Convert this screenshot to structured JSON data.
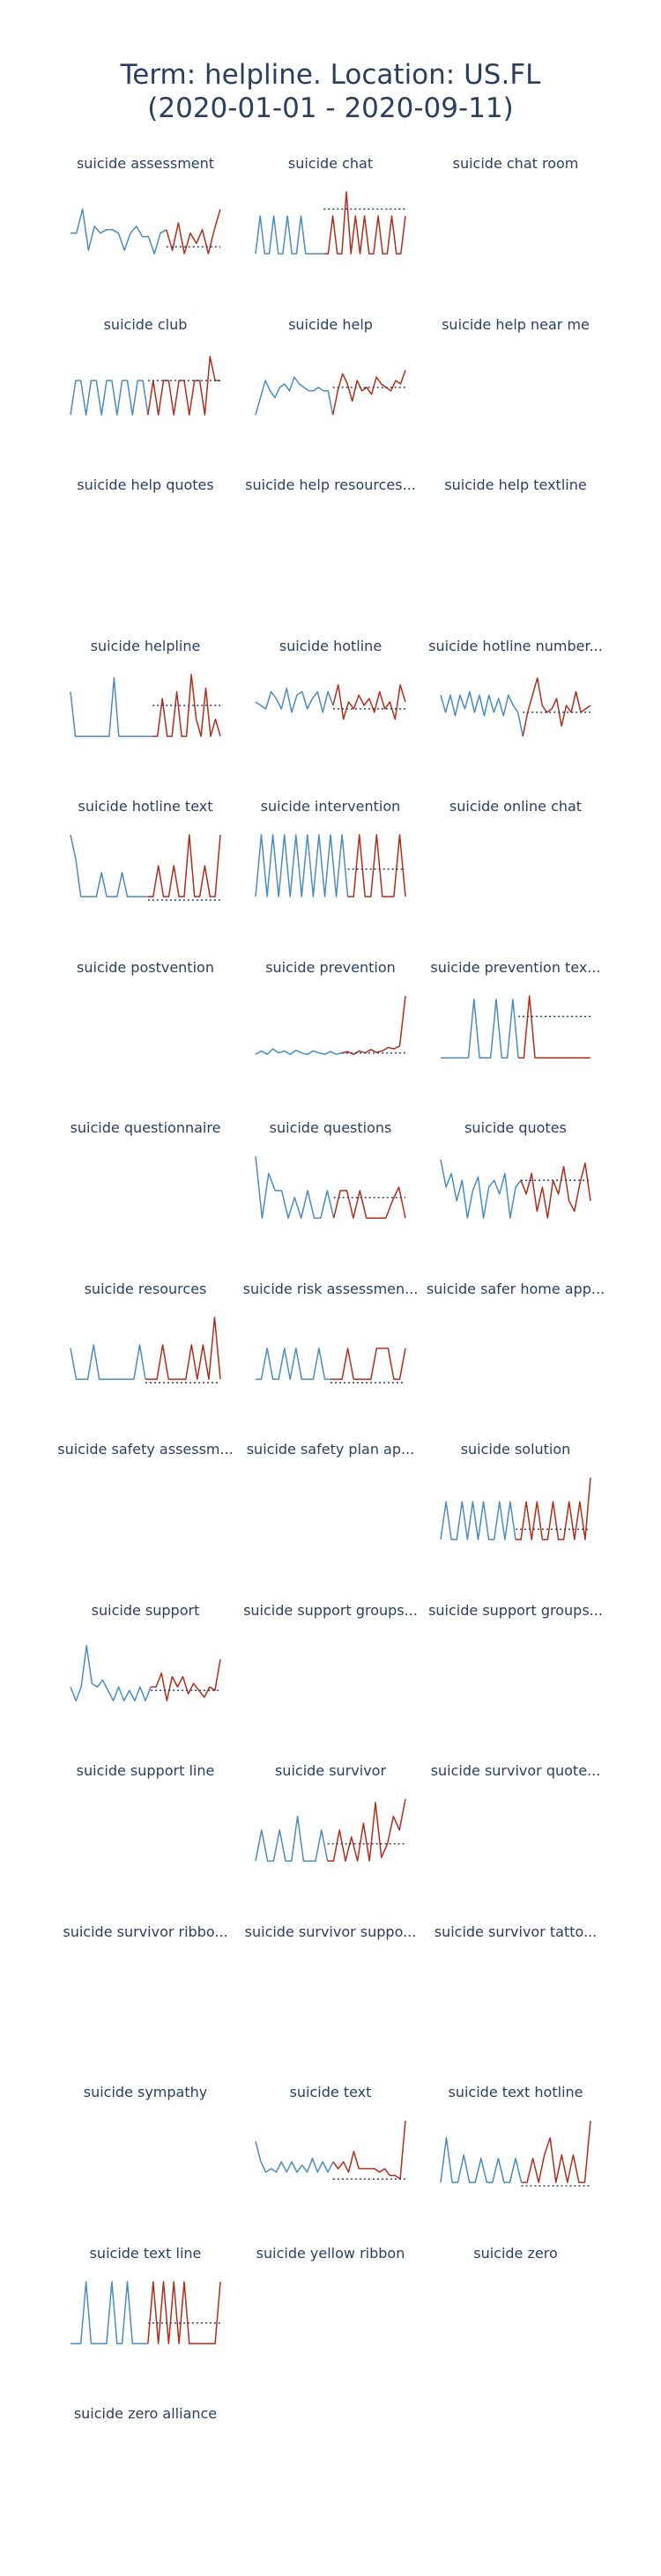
{
  "title": "Term: helpline. Location: US.FL\n(2020-01-01 - 2020-09-11)",
  "colors": {
    "before": "#4a8cbf",
    "after": "#b22c1c",
    "baseline": "#2a3f5f",
    "title": "#2a3f5f"
  },
  "chart_data": [
    {
      "type": "line",
      "title": "suicide assessment",
      "before": [
        0.65,
        0.65,
        0.3,
        0.9,
        0.55,
        0.65,
        0.6,
        0.6,
        0.65,
        0.9,
        0.65,
        0.55,
        0.7,
        0.7,
        0.95,
        0.65,
        0.6
      ],
      "after": [
        0.9,
        0.5,
        0.95,
        0.65,
        0.8,
        0.6,
        0.95,
        0.6,
        0.3
      ],
      "level": 0.85
    },
    {
      "type": "line",
      "title": "suicide chat",
      "before": [
        0.95,
        0.4,
        0.95,
        0.95,
        0.4,
        0.95,
        0.95,
        0.4,
        0.95,
        0.95,
        0.4,
        0.95,
        0.95,
        0.95,
        0.95,
        0.95
      ],
      "after": [
        0.95,
        0.4,
        0.95,
        0.95,
        0.05,
        0.95,
        0.4,
        0.95,
        0.4,
        0.95,
        0.95,
        0.4,
        0.95,
        0.95,
        0.4,
        0.95,
        0.95,
        0.4
      ],
      "level": 0.3
    },
    {
      "type": "line",
      "title": "suicide chat room"
    },
    {
      "type": "line",
      "title": "suicide club",
      "before": [
        0.95,
        0.45,
        0.45,
        0.95,
        0.45,
        0.45,
        0.95,
        0.45,
        0.45,
        0.95,
        0.45,
        0.45,
        0.95,
        0.45,
        0.45,
        0.95
      ],
      "after": [
        0.45,
        0.95,
        0.45,
        0.45,
        0.95,
        0.45,
        0.45,
        0.95,
        0.45,
        0.45,
        0.95,
        0.1,
        0.45,
        0.45
      ],
      "level": 0.45
    },
    {
      "type": "line",
      "title": "suicide help",
      "before": [
        0.95,
        0.7,
        0.45,
        0.6,
        0.7,
        0.55,
        0.5,
        0.6,
        0.4,
        0.5,
        0.55,
        0.6,
        0.6,
        0.55,
        0.6,
        0.6,
        0.95
      ],
      "after": [
        0.6,
        0.35,
        0.5,
        0.75,
        0.45,
        0.6,
        0.55,
        0.65,
        0.4,
        0.5,
        0.55,
        0.6,
        0.45,
        0.5,
        0.3
      ],
      "level": 0.55
    },
    {
      "type": "line",
      "title": "suicide help near me"
    },
    {
      "type": "line",
      "title": "suicide help quotes"
    },
    {
      "type": "line",
      "title": "suicide help resources..."
    },
    {
      "type": "line",
      "title": "suicide help textline"
    },
    {
      "type": "line",
      "title": "suicide helpline",
      "before": [
        0.3,
        0.95,
        0.95,
        0.95,
        0.95,
        0.95,
        0.95,
        0.95,
        0.95,
        0.1,
        0.95,
        0.95,
        0.95,
        0.95,
        0.95,
        0.95,
        0.95,
        0.95
      ],
      "after": [
        0.95,
        0.4,
        0.95,
        0.95,
        0.3,
        0.95,
        0.95,
        0.05,
        0.7,
        0.95,
        0.25,
        0.95,
        0.7,
        0.95
      ],
      "level": 0.5
    },
    {
      "type": "line",
      "title": "suicide hotline",
      "before": [
        0.45,
        0.5,
        0.55,
        0.3,
        0.4,
        0.55,
        0.25,
        0.6,
        0.35,
        0.3,
        0.55,
        0.4,
        0.3,
        0.6,
        0.3,
        0.5
      ],
      "after": [
        0.2,
        0.7,
        0.45,
        0.55,
        0.35,
        0.5,
        0.4,
        0.6,
        0.3,
        0.55,
        0.45,
        0.7,
        0.2,
        0.45
      ],
      "level": 0.55
    },
    {
      "type": "line",
      "title": "suicide hotline number...",
      "before": [
        0.35,
        0.6,
        0.35,
        0.65,
        0.35,
        0.55,
        0.3,
        0.6,
        0.35,
        0.65,
        0.35,
        0.6,
        0.4,
        0.65,
        0.35,
        0.5,
        0.6,
        0.95
      ],
      "after": [
        0.6,
        0.35,
        0.1,
        0.5,
        0.6,
        0.55,
        0.4,
        0.8,
        0.5,
        0.6,
        0.3,
        0.6,
        0.55,
        0.5
      ],
      "level": 0.6
    },
    {
      "type": "line",
      "title": "suicide hotline text",
      "before": [
        0.05,
        0.4,
        0.95,
        0.95,
        0.95,
        0.95,
        0.6,
        0.95,
        0.95,
        0.95,
        0.6,
        0.95,
        0.95,
        0.95,
        0.95,
        0.95
      ],
      "after": [
        0.95,
        0.5,
        0.95,
        0.95,
        0.5,
        0.95,
        0.95,
        0.05,
        0.95,
        0.95,
        0.5,
        0.95,
        0.95,
        0.05
      ],
      "level": 1.0
    },
    {
      "type": "line",
      "title": "suicide intervention",
      "before": [
        0.95,
        0.05,
        0.95,
        0.05,
        0.95,
        0.05,
        0.95,
        0.05,
        0.95,
        0.05,
        0.95,
        0.05,
        0.95,
        0.05,
        0.95,
        0.05,
        0.95
      ],
      "after": [
        0.95,
        0.05,
        0.95,
        0.95,
        0.05,
        0.95,
        0.95,
        0.95,
        0.05,
        0.95
      ],
      "level": 0.55
    },
    {
      "type": "line",
      "title": "suicide online chat"
    },
    {
      "type": "line",
      "title": "suicide postvention"
    },
    {
      "type": "line",
      "title": "suicide prevention",
      "before": [
        0.9,
        0.85,
        0.9,
        0.82,
        0.88,
        0.85,
        0.9,
        0.84,
        0.88,
        0.9,
        0.85,
        0.88,
        0.9,
        0.86,
        0.9,
        0.88
      ],
      "after": [
        0.86,
        0.9,
        0.85,
        0.88,
        0.83,
        0.87,
        0.85,
        0.8,
        0.82,
        0.78,
        0.05
      ],
      "level": 0.88
    },
    {
      "type": "line",
      "title": "suicide prevention tex...",
      "before": [
        0.95,
        0.95,
        0.95,
        0.95,
        0.95,
        0.95,
        0.1,
        0.95,
        0.95,
        0.95,
        0.1,
        0.95,
        0.95,
        0.1,
        0.95
      ],
      "after": [
        0.95,
        0.05,
        0.95,
        0.95,
        0.95,
        0.95,
        0.95,
        0.95,
        0.95,
        0.95,
        0.95,
        0.95,
        0.95
      ],
      "level": 0.35
    },
    {
      "type": "line",
      "title": "suicide questionnaire"
    },
    {
      "type": "line",
      "title": "suicide questions",
      "before": [
        0.05,
        0.95,
        0.3,
        0.55,
        0.55,
        0.95,
        0.65,
        0.95,
        0.55,
        0.95,
        0.95,
        0.55,
        0.95
      ],
      "after": [
        0.55,
        0.55,
        0.95,
        0.55,
        0.95,
        0.95,
        0.95,
        0.95,
        0.7,
        0.5,
        0.95
      ],
      "level": 0.65
    },
    {
      "type": "line",
      "title": "suicide quotes",
      "before": [
        0.1,
        0.5,
        0.3,
        0.7,
        0.4,
        0.95,
        0.55,
        0.35,
        0.95,
        0.5,
        0.4,
        0.6,
        0.3,
        0.95,
        0.5,
        0.4
      ],
      "after": [
        0.6,
        0.3,
        0.85,
        0.5,
        0.95,
        0.4,
        0.6,
        0.2,
        0.7,
        0.85,
        0.45,
        0.15,
        0.7
      ],
      "level": 0.4
    },
    {
      "type": "line",
      "title": "suicide resources",
      "before": [
        0.5,
        0.95,
        0.95,
        0.95,
        0.45,
        0.95,
        0.95,
        0.95,
        0.95,
        0.95,
        0.95,
        0.95,
        0.45,
        0.95
      ],
      "after": [
        0.95,
        0.95,
        0.45,
        0.95,
        0.95,
        0.95,
        0.95,
        0.45,
        0.95,
        0.45,
        0.95,
        0.05,
        0.95
      ],
      "level": 1.0
    },
    {
      "type": "line",
      "title": "suicide risk assessmen...",
      "before": [
        0.95,
        0.95,
        0.5,
        0.95,
        0.95,
        0.5,
        0.95,
        0.5,
        0.95,
        0.95,
        0.95,
        0.5,
        0.95,
        0.95
      ],
      "after": [
        0.95,
        0.95,
        0.5,
        0.95,
        0.95,
        0.95,
        0.95,
        0.5,
        0.5,
        0.5,
        0.95,
        0.95,
        0.5
      ],
      "level": 1.0
    },
    {
      "type": "line",
      "title": "suicide safer home app..."
    },
    {
      "type": "line",
      "title": "suicide safety assessm..."
    },
    {
      "type": "line",
      "title": "suicide safety plan ap..."
    },
    {
      "type": "line",
      "title": "suicide solution",
      "before": [
        0.95,
        0.4,
        0.95,
        0.95,
        0.4,
        0.95,
        0.4,
        0.95,
        0.4,
        0.95,
        0.95,
        0.4,
        0.95,
        0.4,
        0.95
      ],
      "after": [
        0.95,
        0.4,
        0.95,
        0.4,
        0.95,
        0.95,
        0.4,
        0.95,
        0.95,
        0.4,
        0.95,
        0.4,
        0.95,
        0.05
      ],
      "level": 0.8
    },
    {
      "type": "line",
      "title": "suicide support",
      "before": [
        0.75,
        0.95,
        0.75,
        0.15,
        0.7,
        0.75,
        0.65,
        0.8,
        0.95,
        0.75,
        0.95,
        0.8,
        0.95,
        0.75,
        0.95,
        0.75
      ],
      "after": [
        0.75,
        0.55,
        0.95,
        0.6,
        0.75,
        0.6,
        0.85,
        0.7,
        0.8,
        0.9,
        0.75,
        0.8,
        0.35
      ],
      "level": 0.8
    },
    {
      "type": "line",
      "title": "suicide support groups..."
    },
    {
      "type": "line",
      "title": "suicide support groups..."
    },
    {
      "type": "line",
      "title": "suicide support line"
    },
    {
      "type": "line",
      "title": "suicide survivor",
      "before": [
        0.95,
        0.5,
        0.95,
        0.95,
        0.5,
        0.95,
        0.95,
        0.3,
        0.95,
        0.95,
        0.95,
        0.5,
        0.95
      ],
      "after": [
        0.95,
        0.5,
        0.95,
        0.6,
        0.95,
        0.4,
        0.95,
        0.1,
        0.9,
        0.7,
        0.3,
        0.5,
        0.05
      ],
      "level": 0.7
    },
    {
      "type": "line",
      "title": "suicide survivor quote..."
    },
    {
      "type": "line",
      "title": "suicide survivor ribbo..."
    },
    {
      "type": "line",
      "title": "suicide survivor suppo..."
    },
    {
      "type": "line",
      "title": "suicide survivor tatto..."
    },
    {
      "type": "line",
      "title": "suicide sympathy"
    },
    {
      "type": "line",
      "title": "suicide text",
      "before": [
        0.35,
        0.65,
        0.8,
        0.75,
        0.8,
        0.65,
        0.8,
        0.65,
        0.8,
        0.7,
        0.8,
        0.6,
        0.8,
        0.65,
        0.8,
        0.65
      ],
      "after": [
        0.75,
        0.65,
        0.8,
        0.5,
        0.75,
        0.75,
        0.75,
        0.75,
        0.8,
        0.75,
        0.85,
        0.85,
        0.9,
        0.05
      ],
      "level": 0.9
    },
    {
      "type": "line",
      "title": "suicide text hotline",
      "before": [
        0.95,
        0.3,
        0.95,
        0.95,
        0.55,
        0.95,
        0.95,
        0.6,
        0.95,
        0.95,
        0.6,
        0.95,
        0.95,
        0.6,
        0.95
      ],
      "after": [
        0.95,
        0.6,
        0.95,
        0.55,
        0.3,
        0.95,
        0.55,
        0.95,
        0.55,
        0.95,
        0.95,
        0.05
      ],
      "level": 1.0
    },
    {
      "type": "line",
      "title": "suicide text line",
      "before": [
        0.95,
        0.95,
        0.95,
        0.05,
        0.95,
        0.95,
        0.95,
        0.95,
        0.05,
        0.95,
        0.95,
        0.05,
        0.95,
        0.95,
        0.95,
        0.95
      ],
      "after": [
        0.05,
        0.95,
        0.05,
        0.95,
        0.05,
        0.95,
        0.05,
        0.95,
        0.95,
        0.95,
        0.95,
        0.95,
        0.95,
        0.05
      ],
      "level": 0.65
    },
    {
      "type": "line",
      "title": "suicide yellow ribbon"
    },
    {
      "type": "line",
      "title": "suicide zero"
    },
    {
      "type": "line",
      "title": "suicide zero alliance"
    }
  ]
}
